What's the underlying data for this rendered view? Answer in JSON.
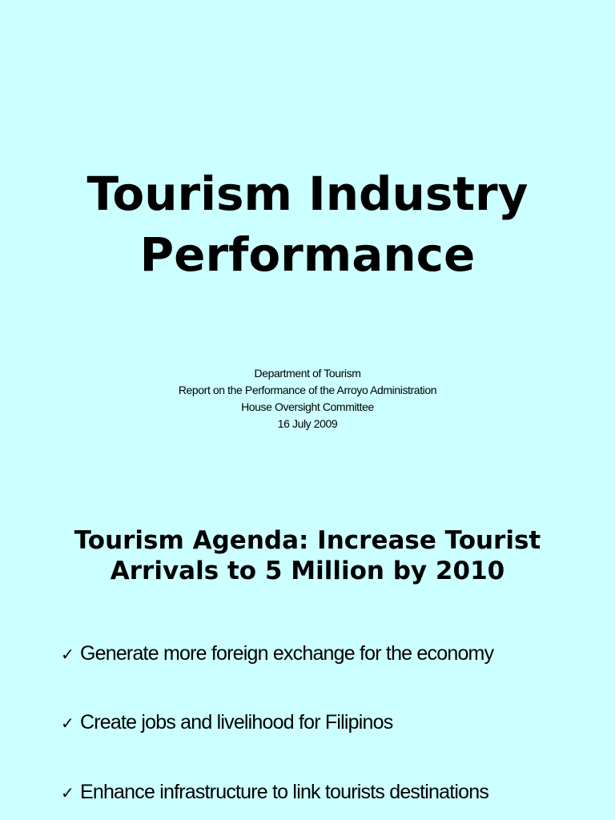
{
  "slide1": {
    "title_lines": [
      "Tourism Industry",
      "Performance"
    ],
    "subtitle_lines": [
      "Department of Tourism",
      "Report on the Performance of the Arroyo Administration",
      "House Oversight Committee",
      "16 July 2009"
    ]
  },
  "slide2": {
    "title_lines": [
      "Tourism Agenda:  Increase Tourist",
      "Arrivals to 5 Million by 2010"
    ],
    "bullets": [
      "Generate more foreign exchange for the economy",
      "Create jobs and livelihood for Filipinos",
      "Enhance infrastructure to link tourists destinations"
    ]
  }
}
